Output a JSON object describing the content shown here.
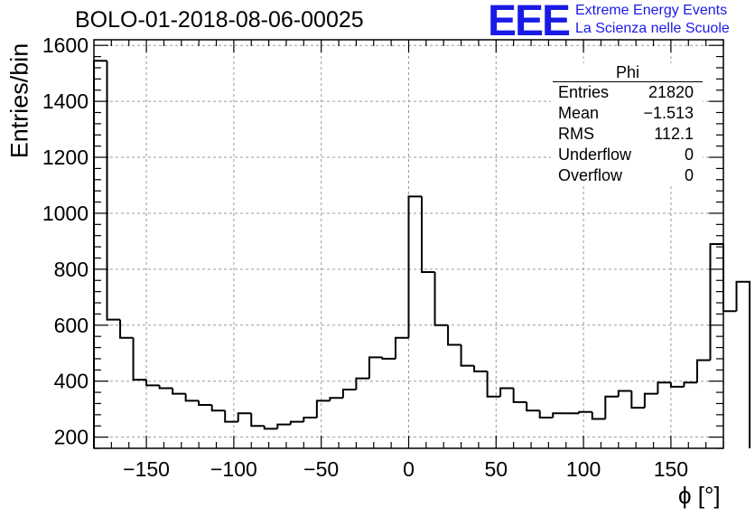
{
  "title": "BOLO-01-2018-08-06-00025",
  "logo": {
    "mark": "EEE",
    "line1": "Extreme Energy Events",
    "line2": "La Scienza nelle Scuole",
    "color": "#1a1ae6"
  },
  "stats_box": {
    "name": "Phi",
    "rows": [
      {
        "label": "Entries",
        "value": "21820"
      },
      {
        "label": "Mean",
        "value": "−1.513"
      },
      {
        "label": "RMS",
        "value": "112.1"
      },
      {
        "label": "Underflow",
        "value": "0"
      },
      {
        "label": "Overflow",
        "value": "0"
      }
    ]
  },
  "chart_data": {
    "type": "bar",
    "style": "step-histogram",
    "title": "BOLO-01-2018-08-06-00025",
    "xlabel": "ϕ [°]",
    "ylabel": "Entries/bin",
    "xlim": [
      -180,
      180
    ],
    "ylim": [
      160,
      1620
    ],
    "grid": true,
    "xticks": [
      -150,
      -100,
      -50,
      0,
      50,
      100,
      150
    ],
    "xtick_labels": [
      "−150",
      "−100",
      "−50",
      "0",
      "50",
      "100",
      "150"
    ],
    "yticks": [
      200,
      400,
      600,
      800,
      1000,
      1200,
      1400,
      1600
    ],
    "ytick_labels": [
      "200",
      "400",
      "600",
      "800",
      "1000",
      "1200",
      "1400",
      "1600"
    ],
    "bin_edges_start": -180,
    "bin_width": 7.5,
    "values": [
      1545,
      620,
      555,
      405,
      385,
      375,
      355,
      330,
      315,
      295,
      255,
      285,
      240,
      230,
      245,
      255,
      270,
      330,
      340,
      370,
      410,
      485,
      480,
      555,
      1060,
      790,
      600,
      530,
      455,
      435,
      345,
      375,
      325,
      295,
      270,
      285,
      285,
      290,
      265,
      345,
      365,
      305,
      355,
      395,
      380,
      395,
      475,
      890,
      650,
      755
    ]
  }
}
